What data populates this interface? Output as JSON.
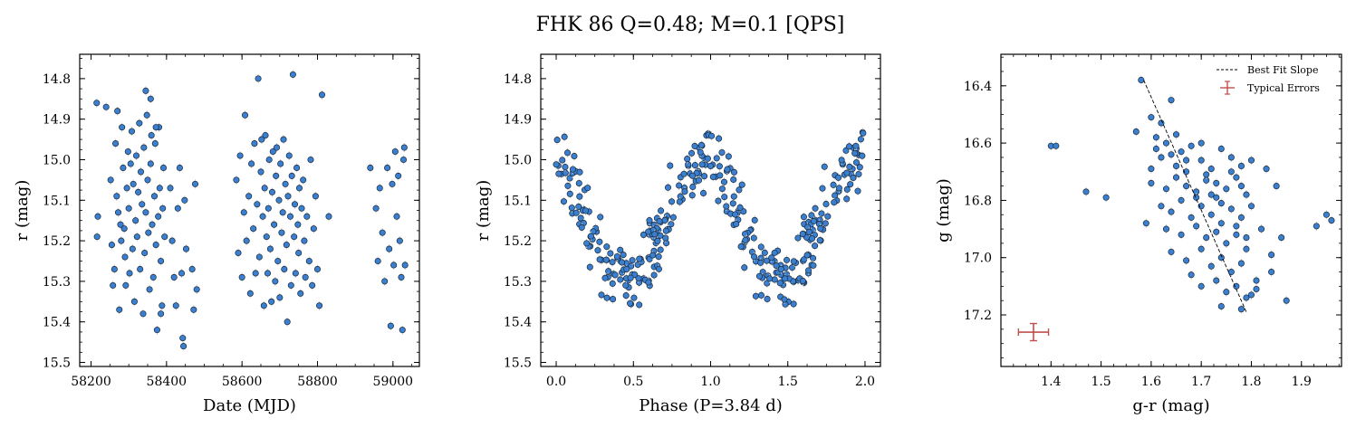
{
  "figure": {
    "title": "FHK 86  Q=0.48; M=0.1 [QPS]",
    "marker_color": "#3a7fd0",
    "marker_edge": "#1a2a3a",
    "error_color": "#c9c9c9",
    "fit_color": "#000000",
    "typical_error_color": "#c0504d"
  },
  "chart_data": [
    {
      "type": "scatter",
      "xlabel": "Date (MJD)",
      "ylabel": "r (mag)",
      "xlim": [
        58170,
        59070
      ],
      "ylim": [
        15.51,
        14.74
      ],
      "xticks": [
        58200,
        58400,
        58600,
        58800,
        59000
      ],
      "yticks": [
        14.8,
        14.9,
        15.0,
        15.1,
        15.2,
        15.3,
        15.4,
        15.5
      ],
      "points": [
        [
          58215,
          14.86
        ],
        [
          58216,
          15.19
        ],
        [
          58218,
          15.14
        ],
        [
          58240,
          14.87
        ],
        [
          58252,
          15.05
        ],
        [
          58255,
          15.21
        ],
        [
          58258,
          15.31
        ],
        [
          58262,
          15.27
        ],
        [
          58265,
          14.96
        ],
        [
          58268,
          15.09
        ],
        [
          58270,
          14.88
        ],
        [
          58272,
          15.13
        ],
        [
          58275,
          15.37
        ],
        [
          58278,
          15.16
        ],
        [
          58280,
          15.2
        ],
        [
          58282,
          14.92
        ],
        [
          58285,
          15.02
        ],
        [
          58288,
          15.17
        ],
        [
          58290,
          15.24
        ],
        [
          58292,
          15.31
        ],
        [
          58295,
          15.07
        ],
        [
          58298,
          14.98
        ],
        [
          58300,
          15.12
        ],
        [
          58302,
          15.28
        ],
        [
          58305,
          15.01
        ],
        [
          58308,
          14.93
        ],
        [
          58310,
          15.22
        ],
        [
          58312,
          15.06
        ],
        [
          58315,
          15.35
        ],
        [
          58318,
          15.15
        ],
        [
          58320,
          14.99
        ],
        [
          58322,
          15.19
        ],
        [
          58325,
          15.08
        ],
        [
          58328,
          14.91
        ],
        [
          58330,
          15.27
        ],
        [
          58332,
          15.03
        ],
        [
          58335,
          15.11
        ],
        [
          58338,
          15.38
        ],
        [
          58340,
          14.97
        ],
        [
          58342,
          15.23
        ],
        [
          58345,
          15.13
        ],
        [
          58348,
          14.89
        ],
        [
          58350,
          15.05
        ],
        [
          58352,
          15.18
        ],
        [
          58355,
          15.32
        ],
        [
          58358,
          15.01
        ],
        [
          58360,
          14.94
        ],
        [
          58362,
          15.16
        ],
        [
          58365,
          15.29
        ],
        [
          58368,
          15.09
        ],
        [
          58370,
          14.96
        ],
        [
          58372,
          15.21
        ],
        [
          58375,
          15.42
        ],
        [
          58378,
          15.14
        ],
        [
          58380,
          14.92
        ],
        [
          58382,
          15.07
        ],
        [
          58385,
          15.25
        ],
        [
          58388,
          15.36
        ],
        [
          58390,
          15.12
        ],
        [
          58392,
          15.02
        ],
        [
          58395,
          15.19
        ],
        [
          58345,
          14.83
        ],
        [
          58358,
          14.85
        ],
        [
          58372,
          14.92
        ],
        [
          58385,
          15.38
        ],
        [
          58410,
          15.07
        ],
        [
          58415,
          15.2
        ],
        [
          58420,
          15.29
        ],
        [
          58425,
          15.36
        ],
        [
          58430,
          15.12
        ],
        [
          58435,
          15.02
        ],
        [
          58440,
          15.28
        ],
        [
          58443,
          15.44
        ],
        [
          58445,
          15.46
        ],
        [
          58448,
          15.1
        ],
        [
          58452,
          15.22
        ],
        [
          58468,
          15.27
        ],
        [
          58472,
          15.37
        ],
        [
          58476,
          15.06
        ],
        [
          58480,
          15.32
        ],
        [
          58585,
          15.05
        ],
        [
          58590,
          15.23
        ],
        [
          58595,
          14.99
        ],
        [
          58600,
          15.29
        ],
        [
          58605,
          15.13
        ],
        [
          58608,
          14.89
        ],
        [
          58612,
          15.2
        ],
        [
          58618,
          15.09
        ],
        [
          58622,
          15.33
        ],
        [
          58625,
          15.01
        ],
        [
          58630,
          15.17
        ],
        [
          58633,
          14.96
        ],
        [
          58636,
          15.28
        ],
        [
          58640,
          15.11
        ],
        [
          58643,
          14.8
        ],
        [
          58646,
          15.24
        ],
        [
          58650,
          15.03
        ],
        [
          58652,
          14.95
        ],
        [
          58655,
          15.14
        ],
        [
          58658,
          15.36
        ],
        [
          58660,
          15.07
        ],
        [
          58662,
          14.94
        ],
        [
          58665,
          15.19
        ],
        [
          58668,
          15.28
        ],
        [
          58670,
          15.12
        ],
        [
          58672,
          15.0
        ],
        [
          58675,
          15.22
        ],
        [
          58678,
          15.35
        ],
        [
          58680,
          15.08
        ],
        [
          58682,
          14.98
        ],
        [
          58685,
          15.16
        ],
        [
          58688,
          15.3
        ],
        [
          58690,
          15.04
        ],
        [
          58692,
          14.97
        ],
        [
          58695,
          15.25
        ],
        [
          58698,
          15.1
        ],
        [
          58700,
          15.34
        ],
        [
          58702,
          15.01
        ],
        [
          58705,
          15.18
        ],
        [
          58708,
          15.13
        ],
        [
          58710,
          14.95
        ],
        [
          58712,
          15.27
        ],
        [
          58715,
          15.06
        ],
        [
          58718,
          15.21
        ],
        [
          58720,
          15.4
        ],
        [
          58722,
          15.09
        ],
        [
          58725,
          14.99
        ],
        [
          58728,
          15.14
        ],
        [
          58730,
          15.31
        ],
        [
          58732,
          15.04
        ],
        [
          58735,
          14.79
        ],
        [
          58738,
          15.19
        ],
        [
          58740,
          15.11
        ],
        [
          58742,
          15.28
        ],
        [
          58745,
          15.02
        ],
        [
          58748,
          15.16
        ],
        [
          58750,
          15.23
        ],
        [
          58752,
          15.07
        ],
        [
          58755,
          15.33
        ],
        [
          58758,
          15.12
        ],
        [
          58762,
          15.05
        ],
        [
          58765,
          15.2
        ],
        [
          58768,
          15.29
        ],
        [
          58772,
          15.14
        ],
        [
          58778,
          15.25
        ],
        [
          58782,
          15.0
        ],
        [
          58786,
          15.31
        ],
        [
          58790,
          15.17
        ],
        [
          58795,
          15.09
        ],
        [
          58800,
          15.27
        ],
        [
          58805,
          15.36
        ],
        [
          58812,
          14.84
        ],
        [
          58830,
          15.14
        ],
        [
          58940,
          15.02
        ],
        [
          58955,
          15.12
        ],
        [
          58960,
          15.25
        ],
        [
          58965,
          15.07
        ],
        [
          58972,
          15.18
        ],
        [
          58978,
          15.3
        ],
        [
          58985,
          15.02
        ],
        [
          58990,
          15.22
        ],
        [
          58994,
          15.41
        ],
        [
          58998,
          15.06
        ],
        [
          59002,
          15.26
        ],
        [
          59006,
          14.98
        ],
        [
          59010,
          15.14
        ],
        [
          59014,
          15.04
        ],
        [
          59018,
          15.2
        ],
        [
          59022,
          15.29
        ],
        [
          59025,
          15.42
        ],
        [
          59028,
          15.0
        ],
        [
          59030,
          14.97
        ],
        [
          59032,
          15.26
        ]
      ]
    },
    {
      "type": "scatter",
      "xlabel": "Phase (P=3.84 d)",
      "ylabel": "r (mag)",
      "xlim": [
        -0.1,
        2.1
      ],
      "ylim": [
        15.51,
        14.74
      ],
      "xticks": [
        0.0,
        0.5,
        1.0,
        1.5,
        2.0
      ],
      "yticks": [
        14.8,
        14.9,
        15.0,
        15.1,
        15.2,
        15.3,
        15.4,
        15.5
      ],
      "xticklabels": [
        "0.0",
        "0.5",
        "1.0",
        "1.5",
        "2.0"
      ],
      "fold": {
        "amplitude": 0.145,
        "mean": 15.15,
        "min_phase": 0.45,
        "scatter": 0.07,
        "n": 180,
        "seed": 86
      }
    },
    {
      "type": "scatter",
      "xlabel": "g-r (mag)",
      "ylabel": "g (mag)",
      "xlim": [
        1.3,
        1.98
      ],
      "ylim": [
        17.38,
        16.29
      ],
      "xticks": [
        1.4,
        1.5,
        1.6,
        1.7,
        1.8,
        1.9
      ],
      "yticks": [
        16.4,
        16.6,
        16.8,
        17.0,
        17.2
      ],
      "points": [
        [
          1.58,
          16.38
        ],
        [
          1.6,
          16.51
        ],
        [
          1.62,
          16.53
        ],
        [
          1.64,
          16.45
        ],
        [
          1.57,
          16.56
        ],
        [
          1.61,
          16.58
        ],
        [
          1.63,
          16.6
        ],
        [
          1.65,
          16.57
        ],
        [
          1.66,
          16.63
        ],
        [
          1.68,
          16.61
        ],
        [
          1.62,
          16.65
        ],
        [
          1.64,
          16.64
        ],
        [
          1.6,
          16.69
        ],
        [
          1.67,
          16.7
        ],
        [
          1.7,
          16.66
        ],
        [
          1.72,
          16.69
        ],
        [
          1.74,
          16.62
        ],
        [
          1.76,
          16.65
        ],
        [
          1.78,
          16.68
        ],
        [
          1.8,
          16.66
        ],
        [
          1.6,
          16.74
        ],
        [
          1.63,
          16.76
        ],
        [
          1.65,
          16.72
        ],
        [
          1.67,
          16.75
        ],
        [
          1.69,
          16.77
        ],
        [
          1.71,
          16.73
        ],
        [
          1.73,
          16.79
        ],
        [
          1.75,
          16.76
        ],
        [
          1.77,
          16.72
        ],
        [
          1.79,
          16.78
        ],
        [
          1.62,
          16.82
        ],
        [
          1.64,
          16.84
        ],
        [
          1.66,
          16.8
        ],
        [
          1.68,
          16.86
        ],
        [
          1.7,
          16.82
        ],
        [
          1.72,
          16.85
        ],
        [
          1.74,
          16.88
        ],
        [
          1.76,
          16.83
        ],
        [
          1.78,
          16.86
        ],
        [
          1.8,
          16.82
        ],
        [
          1.59,
          16.88
        ],
        [
          1.63,
          16.9
        ],
        [
          1.66,
          16.92
        ],
        [
          1.69,
          16.89
        ],
        [
          1.71,
          16.93
        ],
        [
          1.73,
          16.91
        ],
        [
          1.75,
          16.95
        ],
        [
          1.77,
          16.92
        ],
        [
          1.79,
          16.97
        ],
        [
          1.82,
          16.9
        ],
        [
          1.64,
          16.98
        ],
        [
          1.67,
          17.01
        ],
        [
          1.7,
          16.97
        ],
        [
          1.72,
          17.03
        ],
        [
          1.74,
          17.0
        ],
        [
          1.76,
          17.05
        ],
        [
          1.78,
          17.02
        ],
        [
          1.81,
          17.08
        ],
        [
          1.84,
          17.05
        ],
        [
          1.68,
          17.06
        ],
        [
          1.7,
          17.1
        ],
        [
          1.73,
          17.08
        ],
        [
          1.75,
          17.12
        ],
        [
          1.77,
          17.1
        ],
        [
          1.79,
          17.14
        ],
        [
          1.81,
          17.11
        ],
        [
          1.87,
          17.15
        ],
        [
          1.74,
          17.17
        ],
        [
          1.78,
          17.18
        ],
        [
          1.8,
          17.13
        ],
        [
          1.69,
          16.79
        ],
        [
          1.71,
          16.71
        ],
        [
          1.73,
          16.74
        ],
        [
          1.76,
          16.7
        ],
        [
          1.78,
          16.75
        ],
        [
          1.83,
          16.69
        ],
        [
          1.85,
          16.75
        ],
        [
          1.61,
          16.62
        ],
        [
          1.65,
          16.68
        ],
        [
          1.67,
          16.66
        ],
        [
          1.7,
          16.6
        ],
        [
          1.72,
          16.78
        ],
        [
          1.74,
          16.81
        ],
        [
          1.77,
          16.89
        ],
        [
          1.79,
          16.93
        ],
        [
          1.84,
          16.99
        ],
        [
          1.86,
          16.93
        ],
        [
          1.4,
          16.61
        ],
        [
          1.41,
          16.61
        ],
        [
          1.47,
          16.77
        ],
        [
          1.51,
          16.79
        ],
        [
          1.93,
          16.89
        ],
        [
          1.95,
          16.85
        ],
        [
          1.96,
          16.87
        ]
      ],
      "fit_line": [
        [
          1.585,
          16.38
        ],
        [
          1.79,
          17.19
        ]
      ],
      "typical_error": {
        "x": 1.365,
        "y": 17.26,
        "xerr": 0.03,
        "yerr": 0.03
      },
      "legend": {
        "placement": "upper-right",
        "entries": [
          "Best Fit Slope",
          "Typical Errors"
        ]
      }
    }
  ]
}
